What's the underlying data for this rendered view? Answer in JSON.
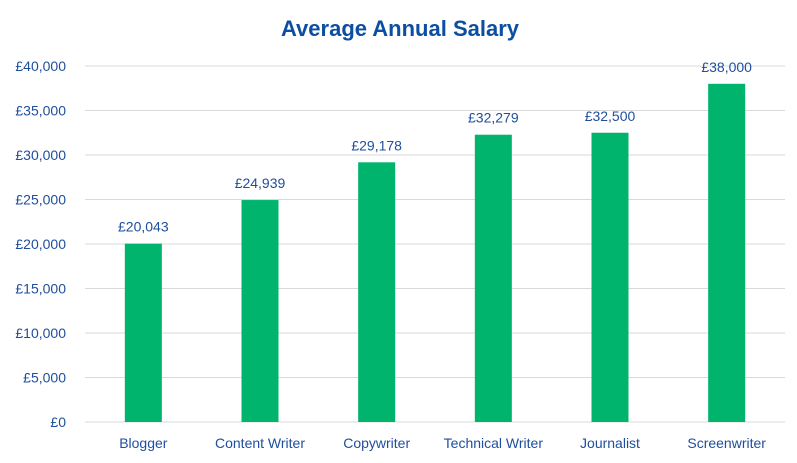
{
  "chart_data": {
    "type": "bar",
    "title": "Average Annual Salary",
    "categories": [
      "Blogger",
      "Content Writer",
      "Copywriter",
      "Technical Writer",
      "Journalist",
      "Screenwriter"
    ],
    "values": [
      20043,
      24939,
      29178,
      32279,
      32500,
      38000
    ],
    "data_labels": [
      "£20,043",
      "£24,939",
      "£29,178",
      "£32,279",
      "£32,500",
      "£38,000"
    ],
    "ylim": [
      0,
      40000
    ],
    "yticks": [
      "£0",
      "£5,000",
      "£10,000",
      "£15,000",
      "£20,000",
      "£25,000",
      "£30,000",
      "£35,000",
      "£40,000"
    ],
    "grid": true,
    "colors": {
      "bar": "#00b46e",
      "text": "#1f4e9c",
      "title": "#0b4ea2",
      "grid": "#d9d9d9"
    }
  }
}
